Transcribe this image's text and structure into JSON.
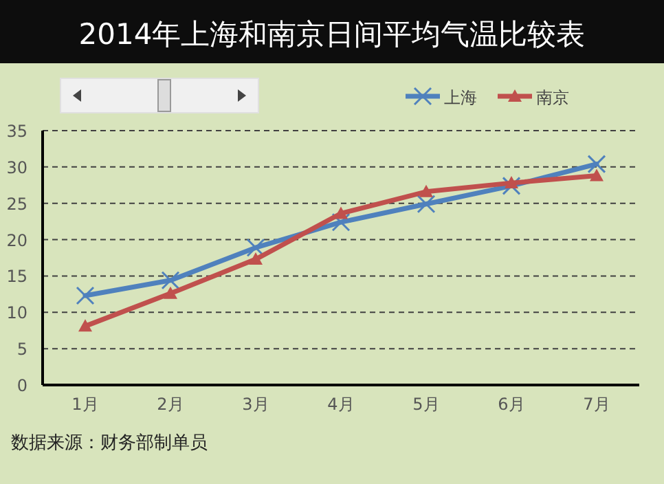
{
  "chart_data": {
    "type": "line",
    "title": "2014年上海和南京日间平均气温比较表",
    "categories": [
      "1月",
      "2月",
      "3月",
      "4月",
      "5月",
      "6月",
      "7月"
    ],
    "series": [
      {
        "name": "上海",
        "color": "#4f81bd",
        "marker": "cross",
        "values": [
          12.3,
          14.4,
          18.9,
          22.4,
          24.9,
          27.4,
          30.4
        ]
      },
      {
        "name": "南京",
        "color": "#c0504d",
        "marker": "triangle",
        "values": [
          8.1,
          12.6,
          17.3,
          23.6,
          26.6,
          27.8,
          28.8
        ]
      }
    ],
    "ylim": [
      0,
      35
    ],
    "yticks": [
      0,
      5,
      10,
      15,
      20,
      25,
      30,
      35
    ],
    "grid": "y",
    "legend": "top right",
    "line_style": "solid",
    "annotations": [
      "数据来源：财务部制单员"
    ]
  }
}
